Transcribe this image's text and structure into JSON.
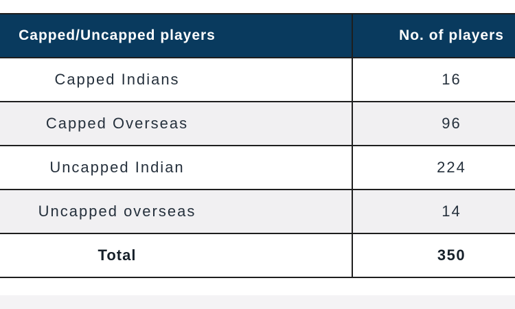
{
  "colors": {
    "header_bg": "#093a5e",
    "header_text": "#ffffff",
    "row_bg": "#ffffff",
    "row_alt_bg": "#f1f0f2",
    "border": "#1e1e1e",
    "body_text": "#25303c",
    "bottom_strip": "#f4f3f5"
  },
  "chart_data": {
    "type": "table",
    "columns": [
      "Capped/Uncapped players",
      "No. of players"
    ],
    "rows": [
      {
        "category": "Capped Indians",
        "players": "16"
      },
      {
        "category": "Capped Overseas",
        "players": "96"
      },
      {
        "category": "Uncapped Indian",
        "players": "224"
      },
      {
        "category": "Uncapped overseas",
        "players": "14"
      },
      {
        "category": "Total",
        "players": "350"
      }
    ]
  }
}
